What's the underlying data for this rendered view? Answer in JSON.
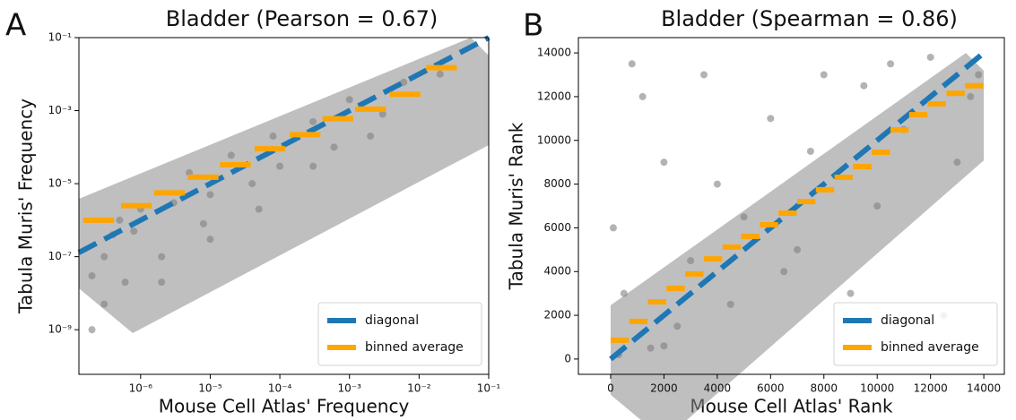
{
  "panel_labels": [
    "A",
    "B"
  ],
  "chart_data": [
    {
      "type": "scatter",
      "title": "Bladder (Pearson = 0.67)",
      "x_label": "Mouse Cell Atlas' Frequency",
      "y_label": "Tabula Muris' Frequency",
      "log_x": true,
      "log_y": true,
      "xlim": [
        1.3e-07,
        0.1
      ],
      "ylim": [
        6e-11,
        0.1
      ],
      "xticks": [
        {
          "value": 1e-06,
          "label": "10⁻⁶"
        },
        {
          "value": 1e-05,
          "label": "10⁻⁵"
        },
        {
          "value": 0.0001,
          "label": "10⁻⁴"
        },
        {
          "value": 0.001,
          "label": "10⁻³"
        },
        {
          "value": 0.01,
          "label": "10⁻²"
        },
        {
          "value": 0.1,
          "label": "10⁻¹"
        }
      ],
      "yticks": [
        {
          "value": 1e-09,
          "label": "10⁻⁹"
        },
        {
          "value": 1e-07,
          "label": "10⁻⁷"
        },
        {
          "value": 1e-05,
          "label": "10⁻⁵"
        },
        {
          "value": 0.001,
          "label": "10⁻³"
        },
        {
          "value": 0.1,
          "label": "10⁻¹"
        }
      ],
      "points": {
        "color": "#808080",
        "x": [
          2e-07,
          2e-07,
          3e-07,
          3e-07,
          4e-07,
          5e-07,
          6e-07,
          8e-07,
          1e-06,
          2e-06,
          3e-06,
          5e-06,
          8e-06,
          1e-05,
          2e-05,
          4e-05,
          8e-05,
          0.0001,
          0.0003,
          0.0006,
          0.001,
          0.003,
          0.006,
          0.02,
          2e-06,
          1e-05,
          5e-05,
          0.0003,
          0.002
        ],
        "values": [
          1e-09,
          3e-08,
          1e-07,
          5e-09,
          4e-07,
          1e-06,
          2e-08,
          5e-07,
          2e-06,
          1e-07,
          3e-06,
          2e-05,
          8e-07,
          5e-06,
          6e-05,
          1e-05,
          0.0002,
          3e-05,
          0.0005,
          0.0001,
          0.002,
          0.0008,
          0.006,
          0.01,
          2e-08,
          3e-07,
          2e-06,
          3e-05,
          0.0002
        ]
      },
      "line_series": [
        {
          "name": "diagonal",
          "color": "#1f77b4",
          "x": [
            1.3e-07,
            0.1
          ],
          "values": [
            1.3e-07,
            0.1
          ]
        }
      ],
      "bin_series": {
        "name": "binned average",
        "color": "#ffa500",
        "x": [
          2.5e-07,
          8.7e-07,
          2.6e-06,
          7.9e-06,
          2.3e-05,
          7.2e-05,
          0.00023,
          0.00068,
          0.002,
          0.0063,
          0.021
        ],
        "values": [
          1e-06,
          2.5e-06,
          5.6e-06,
          1.5e-05,
          3.3e-05,
          9e-05,
          0.00022,
          0.0006,
          0.0011,
          0.0028,
          0.015
        ]
      },
      "legend": "lower right"
    },
    {
      "type": "scatter",
      "title": "Bladder (Spearman = 0.86)",
      "x_label": "Mouse Cell Atlas' Rank",
      "y_label": "Tabula Muris' Rank",
      "log_x": false,
      "log_y": false,
      "xlim": [
        -1210,
        14770
      ],
      "ylim": [
        -700,
        14700
      ],
      "xticks": [
        0,
        2000,
        4000,
        6000,
        8000,
        10000,
        12000,
        14000
      ],
      "yticks": [
        0,
        2000,
        4000,
        6000,
        8000,
        10000,
        12000,
        14000
      ],
      "points": {
        "color": "#808080",
        "x": [
          100,
          500,
          1200,
          300,
          2000,
          2500,
          3000,
          800,
          4000,
          4500,
          5000,
          1500,
          6000,
          7000,
          7500,
          3500,
          9000,
          9500,
          10000,
          11000,
          12000,
          13000,
          13500,
          12500,
          8000,
          11500,
          2000,
          6500,
          10500,
          13800
        ],
        "values": [
          6000,
          3000,
          12000,
          200,
          9000,
          1500,
          4500,
          13500,
          8000,
          2500,
          6500,
          500,
          11000,
          5000,
          9500,
          13000,
          3000,
          12500,
          7000,
          10500,
          13800,
          9000,
          12000,
          2000,
          13000,
          600,
          600,
          4000,
          13500,
          13000
        ]
      },
      "line_series": [
        {
          "name": "diagonal",
          "color": "#1f77b4",
          "x": [
            0,
            14000
          ],
          "values": [
            0,
            14000
          ]
        }
      ],
      "bin_series": {
        "name": "binned average",
        "color": "#ffa500",
        "x": [
          340,
          1040,
          1740,
          2440,
          3140,
          3840,
          4540,
          5240,
          5940,
          6640,
          7340,
          8040,
          8740,
          9440,
          10140,
          10840,
          11540,
          12240,
          12940,
          13640
        ],
        "values": [
          860,
          1720,
          2620,
          3230,
          3890,
          4580,
          5120,
          5610,
          6140,
          6670,
          7200,
          7740,
          8310,
          8800,
          9460,
          10480,
          11170,
          11670,
          12150,
          12500
        ]
      },
      "legend": "lower right"
    }
  ]
}
